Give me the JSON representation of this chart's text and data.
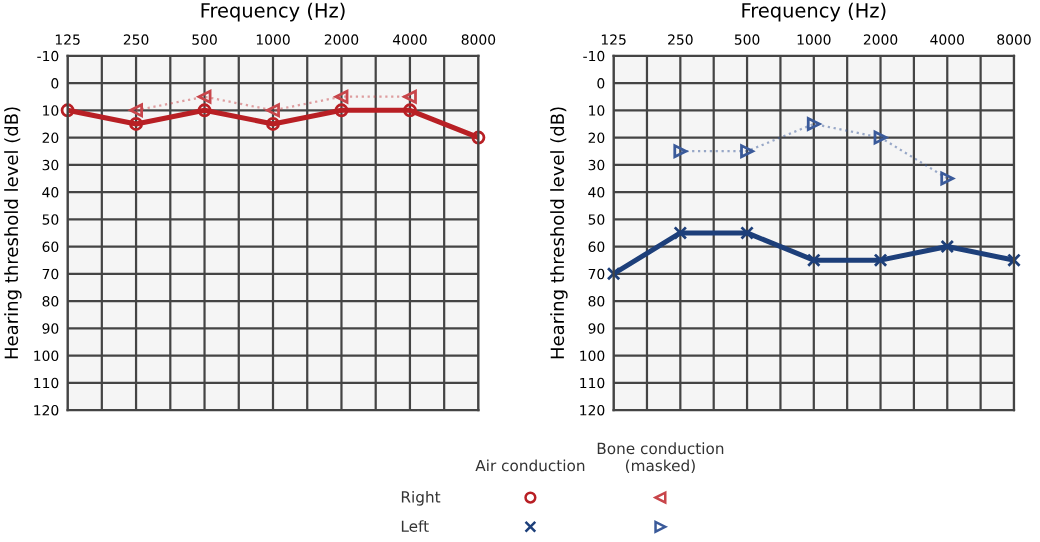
{
  "chart_data": [
    {
      "type": "line",
      "xlabel": "Frequency (Hz)",
      "ylabel": "Hearing threshold level (dB)",
      "categories": [
        "125",
        "250",
        "500",
        "1000",
        "2000",
        "4000",
        "8000"
      ],
      "ylim": [
        120,
        -10
      ],
      "yticks": [
        -10,
        0,
        10,
        20,
        30,
        40,
        50,
        60,
        70,
        80,
        90,
        100,
        110,
        120
      ],
      "grid": true,
      "legend": false,
      "series": [
        {
          "color": "#b81f24",
          "marker": "circle",
          "line_style": "solid",
          "values": [
            10,
            15,
            10,
            15,
            10,
            10,
            20
          ]
        },
        {
          "color": "#c8454a",
          "marker": "triangle-left",
          "line_style": "dotted",
          "values": [
            null,
            10,
            5,
            10,
            5,
            5,
            null
          ]
        }
      ],
      "annotations": [
        "Air conduction",
        "Bone conduction\n(masked)",
        "Right",
        "Left"
      ]
    },
    {
      "type": "line",
      "xlabel": "Frequency (Hz)",
      "ylabel": "Hearing threshold level (dB)",
      "categories": [
        "125",
        "250",
        "500",
        "1000",
        "2000",
        "4000",
        "8000"
      ],
      "ylim": [
        120,
        -10
      ],
      "yticks": [
        -10,
        0,
        10,
        20,
        30,
        40,
        50,
        60,
        70,
        80,
        90,
        100,
        110,
        120
      ],
      "grid": true,
      "legend": false,
      "series": [
        {
          "color": "#1d3f7a",
          "marker": "cross",
          "line_style": "solid",
          "values": [
            70,
            55,
            55,
            65,
            65,
            60,
            65
          ]
        },
        {
          "color": "#3a5a9a",
          "marker": "triangle-right",
          "line_style": "dotted",
          "values": [
            null,
            25,
            25,
            15,
            20,
            35,
            null
          ]
        }
      ]
    }
  ]
}
